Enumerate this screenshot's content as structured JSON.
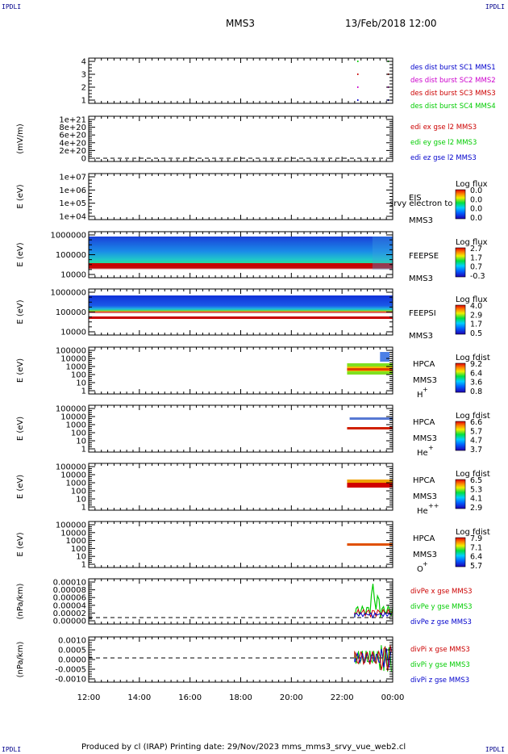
{
  "corners": {
    "tl": "IPDLI",
    "tr": "IPDLI",
    "bl": "IPDLI",
    "br": "IPDLI"
  },
  "header": {
    "spacecraft": "MMS3",
    "datetime": "13/Feb/2018 12:00"
  },
  "footer": {
    "text": "Produced by cl (IRAP)   Printing date: 29/Nov/2023   mms_mms3_srvy_vue_web2.cl"
  },
  "chart_data": {
    "type": "multi-panel time series",
    "x_ticks": [
      "12:00",
      "14:00",
      "16:00",
      "18:00",
      "20:00",
      "22:00",
      "00:00"
    ],
    "panels": [
      {
        "id": "burst",
        "type": "scatter",
        "yticks": [
          "4",
          "3",
          "2",
          "1"
        ],
        "legend": [
          {
            "name": "des dist burst SC1 MMS1",
            "color": "#0000cc"
          },
          {
            "name": "des dist burst SC2 MMS2",
            "color": "#cc00cc"
          },
          {
            "name": "des dist burst SC3 MMS3",
            "color": "#cc0000"
          },
          {
            "name": "des dist burst SC4 MMS4",
            "color": "#00cc00"
          }
        ],
        "markers": [
          {
            "sc": 4,
            "t": [
              22.6,
              23.8
            ]
          },
          {
            "sc": 3,
            "t": [
              22.6,
              23.8
            ]
          },
          {
            "sc": 2,
            "t": [
              22.6,
              23.8
            ]
          },
          {
            "sc": 1,
            "t": [
              22.6,
              23.8
            ]
          }
        ]
      },
      {
        "id": "edi",
        "type": "line",
        "ylabel": "(mV/m)",
        "yticks": [
          "1e+21",
          "8e+20",
          "6e+20",
          "4e+20",
          "2e+20",
          "0"
        ],
        "legend": [
          {
            "name": "edi ex gse l2 MMS3",
            "color": "#cc0000"
          },
          {
            "name": "edi ey gse l2 MMS3",
            "color": "#00cc00"
          },
          {
            "name": "edi ez gse l2 MMS3",
            "color": "#0000cc"
          }
        ]
      },
      {
        "id": "eis",
        "type": "heatmap",
        "ylabel": "E (eV)",
        "yticks": [
          "1e+07",
          "1e+06",
          "1e+05",
          "1e+04"
        ],
        "instrument": "EIS",
        "sub": "MMS3",
        "overlay": "srvy electron to",
        "cbar": {
          "title": "Log flux",
          "ticks": [
            "0.0",
            "0.0",
            "0.0",
            "0.0"
          ]
        }
      },
      {
        "id": "feepse",
        "type": "heatmap",
        "ylabel": "E (eV)",
        "yticks": [
          "1000000",
          "100000",
          "10000"
        ],
        "instrument": "FEEPSE",
        "sub": "MMS3",
        "cbar": {
          "title": "Log flux",
          "ticks": [
            "2.7",
            "1.7",
            "0.7",
            "-0.3"
          ]
        }
      },
      {
        "id": "feepsi",
        "type": "heatmap",
        "ylabel": "E (eV)",
        "yticks": [
          "1000000",
          "100000",
          "10000"
        ],
        "instrument": "FEEPSI",
        "sub": "MMS3",
        "cbar": {
          "title": "Log flux",
          "ticks": [
            "4.0",
            "2.9",
            "1.7",
            "0.5"
          ]
        }
      },
      {
        "id": "hpca_h",
        "type": "heatmap",
        "ylabel": "E (eV)",
        "yticks": [
          "100000",
          "10000",
          "1000",
          "100",
          "10",
          "1"
        ],
        "instrument": "HPCA",
        "sub": "MMS3",
        "species": "H",
        "charge": "+",
        "cbar": {
          "title": "Log fdist",
          "ticks": [
            "9.2",
            "6.4",
            "3.6",
            "0.8"
          ]
        }
      },
      {
        "id": "hpca_he",
        "type": "heatmap",
        "ylabel": "E (eV)",
        "yticks": [
          "100000",
          "10000",
          "1000",
          "100",
          "10",
          "1"
        ],
        "instrument": "HPCA",
        "sub": "MMS3",
        "species": "He",
        "charge": "+",
        "cbar": {
          "title": "Log fdist",
          "ticks": [
            "6.6",
            "5.7",
            "4.7",
            "3.7"
          ]
        }
      },
      {
        "id": "hpca_he2",
        "type": "heatmap",
        "ylabel": "E (eV)",
        "yticks": [
          "100000",
          "10000",
          "1000",
          "100",
          "10",
          "1"
        ],
        "instrument": "HPCA",
        "sub": "MMS3",
        "species": "He",
        "charge": "++",
        "cbar": {
          "title": "Log fdist",
          "ticks": [
            "6.5",
            "5.3",
            "4.1",
            "2.9"
          ]
        }
      },
      {
        "id": "hpca_o",
        "type": "heatmap",
        "ylabel": "E (eV)",
        "yticks": [
          "100000",
          "10000",
          "1000",
          "100",
          "10",
          "1"
        ],
        "instrument": "HPCA",
        "sub": "MMS3",
        "species": "O",
        "charge": "+",
        "cbar": {
          "title": "Log fdist",
          "ticks": [
            "7.9",
            "7.1",
            "6.4",
            "5.7"
          ]
        }
      },
      {
        "id": "divpe",
        "type": "line",
        "ylabel": "(nPa/km)",
        "yticks": [
          "0.00010",
          "0.00008",
          "0.00006",
          "0.00004",
          "0.00002",
          "0.00000"
        ],
        "legend": [
          {
            "name": "divPe x gse MMS3",
            "color": "#cc0000"
          },
          {
            "name": "divPe y gse MMS3",
            "color": "#00cc00"
          },
          {
            "name": "divPe z gse MMS3",
            "color": "#0000cc"
          }
        ]
      },
      {
        "id": "divpi",
        "type": "line",
        "ylabel": "(nPa/km)",
        "yticks": [
          "0.0010",
          "0.0005",
          "0.0000",
          "-0.0005",
          "-0.0010"
        ],
        "legend": [
          {
            "name": "divPi x gse MMS3",
            "color": "#cc0000"
          },
          {
            "name": "divPi y gse MMS3",
            "color": "#00cc00"
          },
          {
            "name": "divPi z gse MMS3",
            "color": "#0000cc"
          }
        ]
      }
    ]
  }
}
